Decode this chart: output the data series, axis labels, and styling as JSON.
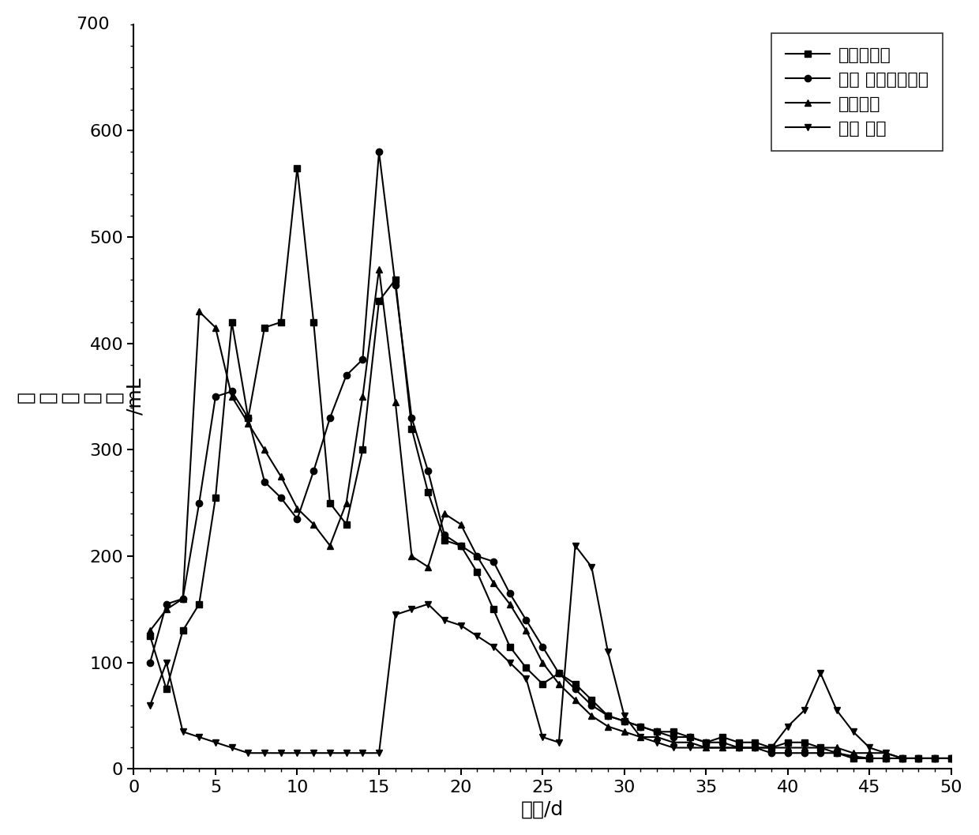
{
  "title": "",
  "xlabel": "天数/d",
  "ylabel_chars": [
    "日",
    "产",
    "甲",
    "烷",
    "量",
    "/mL"
  ],
  "xlim": [
    0,
    50
  ],
  "ylim": [
    0,
    700
  ],
  "xticks": [
    0,
    5,
    10,
    15,
    20,
    25,
    30,
    35,
    40,
    45,
    50
  ],
  "yticks": [
    0,
    100,
    200,
    300,
    400,
    500,
    600
  ],
  "ytick_labels": [
    "0",
    "100",
    "200",
    "300",
    "400",
    "500",
    "600"
  ],
  "ytop_label": "700",
  "legend_labels": [
    "纯秸秆沼液",
    "猪糪 秸秆混合沼液",
    "餐厕沼液",
    "未预 处理"
  ],
  "series1_x": [
    1,
    2,
    3,
    4,
    5,
    6,
    7,
    8,
    9,
    10,
    11,
    12,
    13,
    14,
    15,
    16,
    17,
    18,
    19,
    20,
    21,
    22,
    23,
    24,
    25,
    26,
    27,
    28,
    29,
    30,
    31,
    32,
    33,
    34,
    35,
    36,
    37,
    38,
    39,
    40,
    41,
    42,
    43,
    44,
    45,
    46,
    47,
    48,
    49,
    50
  ],
  "series1_y": [
    125,
    75,
    130,
    155,
    255,
    420,
    330,
    415,
    420,
    565,
    420,
    250,
    230,
    300,
    440,
    460,
    320,
    260,
    215,
    210,
    185,
    150,
    115,
    95,
    80,
    90,
    80,
    65,
    50,
    45,
    40,
    35,
    35,
    30,
    25,
    30,
    25,
    25,
    20,
    25,
    25,
    20,
    15,
    10,
    10,
    10,
    10,
    10,
    10,
    10
  ],
  "series2_x": [
    1,
    2,
    3,
    4,
    5,
    6,
    7,
    8,
    9,
    10,
    11,
    12,
    13,
    14,
    15,
    16,
    17,
    18,
    19,
    20,
    21,
    22,
    23,
    24,
    25,
    26,
    27,
    28,
    29,
    30,
    31,
    32,
    33,
    34,
    35,
    36,
    37,
    38,
    39,
    40,
    41,
    42,
    43,
    44,
    45,
    46,
    47,
    48,
    49,
    50
  ],
  "series2_y": [
    100,
    155,
    160,
    250,
    350,
    355,
    330,
    270,
    255,
    235,
    280,
    330,
    370,
    385,
    580,
    455,
    330,
    280,
    220,
    210,
    200,
    195,
    165,
    140,
    115,
    90,
    75,
    60,
    50,
    45,
    40,
    35,
    30,
    30,
    25,
    25,
    20,
    20,
    15,
    15,
    15,
    15,
    15,
    12,
    10,
    10,
    10,
    10,
    10,
    10
  ],
  "series3_x": [
    1,
    2,
    3,
    4,
    5,
    6,
    7,
    8,
    9,
    10,
    11,
    12,
    13,
    14,
    15,
    16,
    17,
    18,
    19,
    20,
    21,
    22,
    23,
    24,
    25,
    26,
    27,
    28,
    29,
    30,
    31,
    32,
    33,
    34,
    35,
    36,
    37,
    38,
    39,
    40,
    41,
    42,
    43,
    44,
    45,
    46,
    47,
    48,
    49,
    50
  ],
  "series3_y": [
    130,
    150,
    160,
    430,
    415,
    350,
    325,
    300,
    275,
    245,
    230,
    210,
    250,
    350,
    470,
    345,
    200,
    190,
    240,
    230,
    200,
    175,
    155,
    130,
    100,
    80,
    65,
    50,
    40,
    35,
    30,
    30,
    25,
    25,
    20,
    20,
    20,
    20,
    20,
    20,
    20,
    20,
    20,
    15,
    15,
    15,
    10,
    10,
    10,
    10
  ],
  "series4_x": [
    1,
    2,
    3,
    4,
    5,
    6,
    7,
    8,
    9,
    10,
    11,
    12,
    13,
    14,
    15,
    16,
    17,
    18,
    19,
    20,
    21,
    22,
    23,
    24,
    25,
    26,
    27,
    28,
    29,
    30,
    31,
    32,
    33,
    34,
    35,
    36,
    37,
    38,
    39,
    40,
    41,
    42,
    43,
    44,
    45,
    46,
    47,
    48,
    49,
    50
  ],
  "series4_y": [
    60,
    100,
    35,
    30,
    25,
    20,
    15,
    15,
    15,
    15,
    15,
    15,
    15,
    15,
    15,
    145,
    150,
    155,
    140,
    135,
    125,
    115,
    100,
    85,
    30,
    25,
    210,
    190,
    110,
    50,
    30,
    25,
    20,
    20,
    20,
    20,
    20,
    20,
    20,
    40,
    55,
    90,
    55,
    35,
    20,
    15,
    10,
    10,
    10,
    10
  ],
  "line_color": "#000000",
  "bg_color": "#ffffff",
  "marker1": "s",
  "marker2": "o",
  "marker3": "^",
  "marker4": "v",
  "markersize": 6,
  "linewidth": 1.5,
  "fontsize_label": 18,
  "fontsize_tick": 16,
  "fontsize_legend": 16
}
